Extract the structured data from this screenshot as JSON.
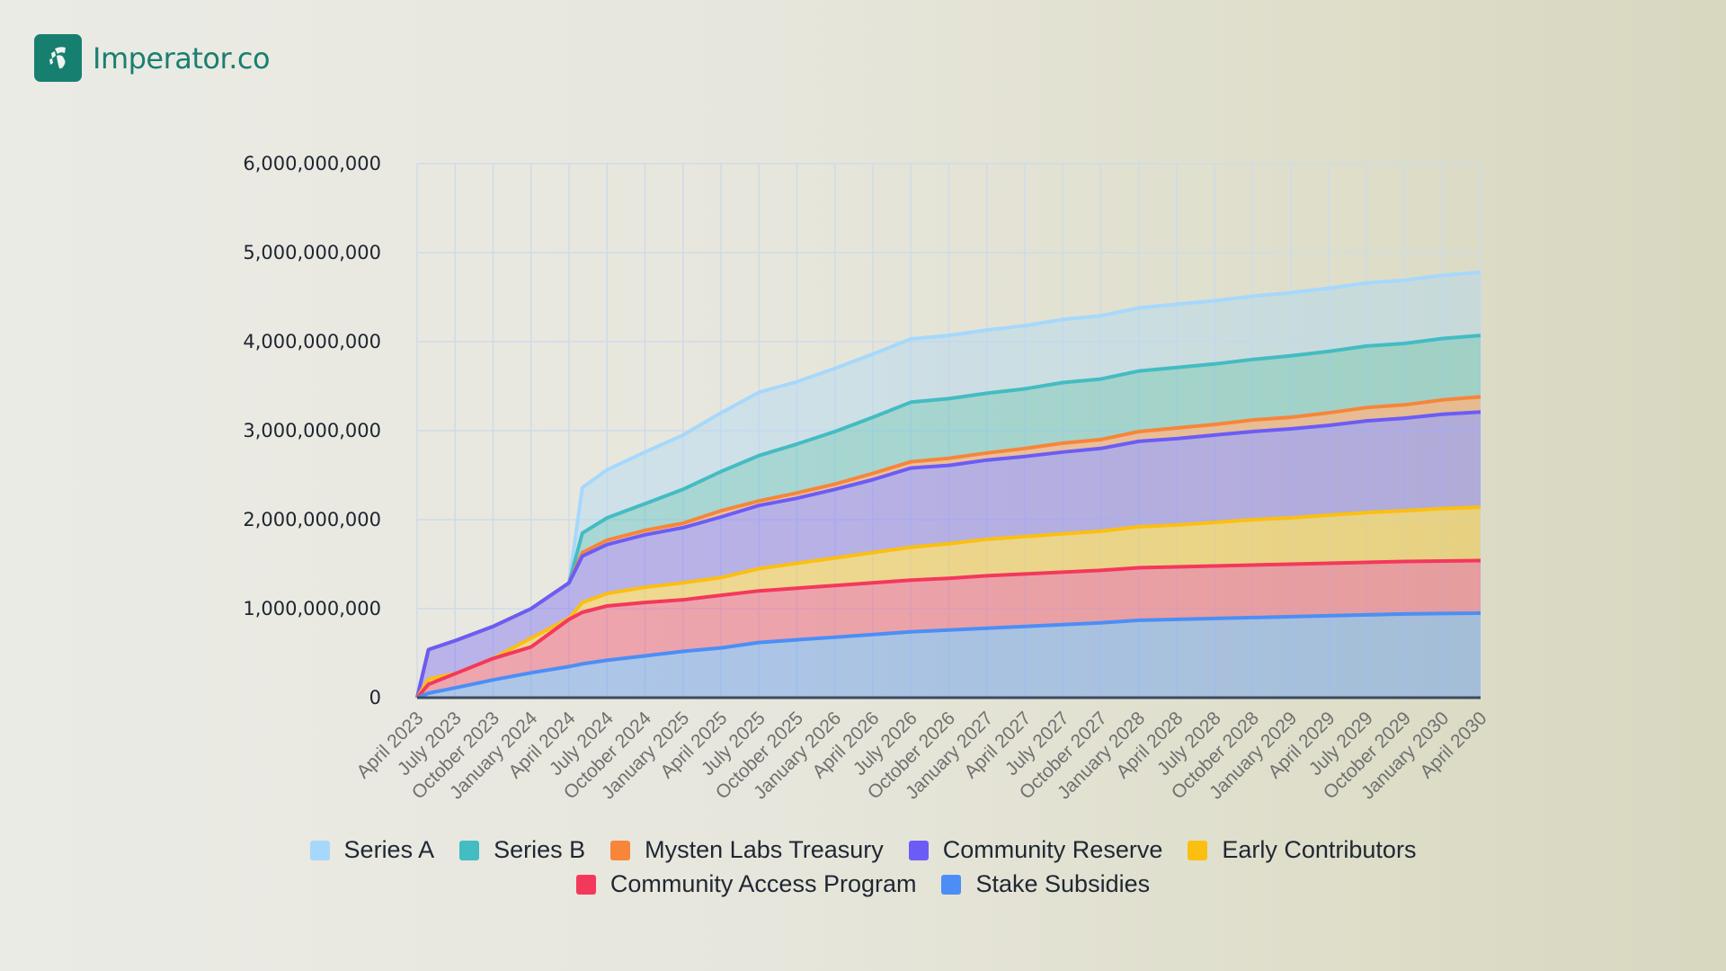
{
  "brand": {
    "name": "Imperator.co",
    "logo_icon": "helmet-icon",
    "color": "#177f70"
  },
  "chart_data": {
    "type": "area",
    "stacked": true,
    "title": "",
    "xlabel": "",
    "ylabel": "",
    "ylim": [
      0,
      6000000000
    ],
    "yticks": [
      0,
      1000000000,
      2000000000,
      3000000000,
      4000000000,
      5000000000,
      6000000000
    ],
    "ytick_labels": [
      "0",
      "1,000,000,000",
      "2,000,000,000",
      "3,000,000,000",
      "4,000,000,000",
      "5,000,000,000",
      "6,000,000,000"
    ],
    "grid": true,
    "legend_position": "bottom",
    "categories": [
      "April 2023",
      "July 2023",
      "October 2023",
      "January 2024",
      "April 2024",
      "July 2024",
      "October 2024",
      "January 2025",
      "April 2025",
      "July 2025",
      "October 2025",
      "January 2026",
      "April 2026",
      "July 2026",
      "October 2026",
      "January 2027",
      "April 2027",
      "July 2027",
      "October 2027",
      "January 2028",
      "April 2028",
      "July 2028",
      "October 2028",
      "January 2029",
      "April 2029",
      "July 2029",
      "October 2029",
      "January 2030",
      "April 2030"
    ],
    "x_index": [
      0,
      0.3,
      1,
      2,
      3,
      4,
      4.35,
      5,
      6,
      7,
      8,
      9,
      10,
      11,
      12,
      13,
      14,
      15,
      16,
      17,
      18,
      19,
      20,
      21,
      22,
      23,
      24,
      25,
      26,
      27,
      28
    ],
    "stack_order_bottom_to_top": [
      "Stake Subsidies",
      "Community Access Program",
      "Early Contributors",
      "Community Reserve",
      "Mysten Labs Treasury",
      "Series B",
      "Series A"
    ],
    "series": [
      {
        "name": "Stake Subsidies",
        "color": "#4c8ef5",
        "values": [
          0,
          50000000,
          110000000,
          200000000,
          280000000,
          350000000,
          380000000,
          420000000,
          470000000,
          520000000,
          560000000,
          620000000,
          650000000,
          680000000,
          710000000,
          740000000,
          760000000,
          780000000,
          800000000,
          820000000,
          840000000,
          870000000,
          880000000,
          890000000,
          900000000,
          910000000,
          920000000,
          930000000,
          940000000,
          945000000,
          950000000
        ]
      },
      {
        "name": "Community Access Program",
        "color": "#f4385c",
        "values": [
          0,
          100000000,
          160000000,
          240000000,
          290000000,
          530000000,
          580000000,
          610000000,
          600000000,
          580000000,
          590000000,
          580000000,
          580000000,
          580000000,
          580000000,
          580000000,
          580000000,
          590000000,
          590000000,
          590000000,
          590000000,
          590000000,
          590000000,
          590000000,
          590000000,
          590000000,
          590000000,
          590000000,
          590000000,
          590000000,
          590000000
        ]
      },
      {
        "name": "Early Contributors",
        "color": "#fbbf12",
        "values": [
          0,
          60000000,
          0,
          0,
          100000000,
          10000000,
          110000000,
          140000000,
          170000000,
          190000000,
          200000000,
          250000000,
          280000000,
          310000000,
          340000000,
          370000000,
          390000000,
          410000000,
          420000000,
          430000000,
          440000000,
          460000000,
          470000000,
          490000000,
          510000000,
          520000000,
          540000000,
          560000000,
          570000000,
          590000000,
          600000000
        ]
      },
      {
        "name": "Community Reserve",
        "color": "#6b5cf6",
        "values": [
          0,
          330000000,
          370000000,
          360000000,
          330000000,
          400000000,
          520000000,
          550000000,
          590000000,
          620000000,
          680000000,
          710000000,
          730000000,
          770000000,
          820000000,
          890000000,
          880000000,
          890000000,
          900000000,
          920000000,
          930000000,
          960000000,
          970000000,
          980000000,
          990000000,
          1000000000,
          1010000000,
          1030000000,
          1040000000,
          1060000000,
          1070000000
        ]
      },
      {
        "name": "Mysten Labs Treasury",
        "color": "#f7853a",
        "values": [
          0,
          0,
          0,
          0,
          0,
          0,
          40000000,
          50000000,
          50000000,
          50000000,
          70000000,
          50000000,
          60000000,
          60000000,
          70000000,
          70000000,
          80000000,
          80000000,
          90000000,
          100000000,
          100000000,
          110000000,
          120000000,
          120000000,
          130000000,
          130000000,
          140000000,
          150000000,
          150000000,
          160000000,
          170000000
        ]
      },
      {
        "name": "Series B",
        "color": "#43bcc2",
        "values": [
          0,
          0,
          0,
          0,
          0,
          0,
          220000000,
          250000000,
          300000000,
          380000000,
          440000000,
          510000000,
          550000000,
          590000000,
          630000000,
          670000000,
          670000000,
          670000000,
          670000000,
          680000000,
          680000000,
          680000000,
          680000000,
          680000000,
          680000000,
          690000000,
          690000000,
          690000000,
          690000000,
          690000000,
          690000000
        ]
      },
      {
        "name": "Series A",
        "color": "#a6d8fb",
        "values": [
          0,
          0,
          0,
          0,
          0,
          0,
          510000000,
          540000000,
          580000000,
          610000000,
          660000000,
          710000000,
          700000000,
          710000000,
          710000000,
          710000000,
          710000000,
          710000000,
          710000000,
          710000000,
          710000000,
          710000000,
          710000000,
          710000000,
          710000000,
          710000000,
          710000000,
          710000000,
          710000000,
          710000000,
          710000000
        ]
      }
    ]
  },
  "legend": {
    "rows": [
      [
        {
          "label": "Series A",
          "color": "#a6d8fb"
        },
        {
          "label": "Series B",
          "color": "#43bcc2"
        },
        {
          "label": "Mysten Labs Treasury",
          "color": "#f7853a"
        },
        {
          "label": "Community Reserve",
          "color": "#6b5cf6"
        },
        {
          "label": "Early Contributors",
          "color": "#fbbf12"
        }
      ],
      [
        {
          "label": "Community Access Program",
          "color": "#f4385c"
        },
        {
          "label": "Stake Subsidies",
          "color": "#4c8ef5"
        }
      ]
    ]
  }
}
